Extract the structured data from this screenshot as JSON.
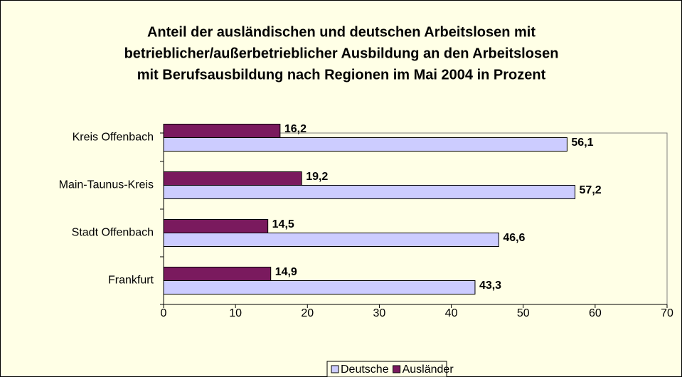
{
  "chart_data": {
    "type": "hbar",
    "title": [
      "Anteil der ausländischen und deutschen Arbeitslosen mit",
      "betrieblicher/außerbetrieblicher Ausbildung an den Arbeitslosen",
      "mit Berufsausbildung nach Regionen im Mai 2004 in Prozent"
    ],
    "categories": [
      "Kreis Offenbach",
      "Main-Taunus-Kreis",
      "Stadt Offenbach",
      "Frankfurt"
    ],
    "series": [
      {
        "name": "Deutsche",
        "color": "#ccccff",
        "values": [
          56.1,
          57.2,
          46.6,
          43.3
        ],
        "value_labels": [
          "56,1",
          "57,2",
          "46,6",
          "43,3"
        ]
      },
      {
        "name": "Ausländer",
        "color": "#7a1a5e",
        "values": [
          16.2,
          19.2,
          14.5,
          14.9
        ],
        "value_labels": [
          "16,2",
          "19,2",
          "14,5",
          "14,9"
        ]
      }
    ],
    "xlim": [
      0,
      70
    ],
    "xticks": [
      0,
      10,
      20,
      30,
      40,
      50,
      60,
      70
    ],
    "legend": "bottom"
  }
}
